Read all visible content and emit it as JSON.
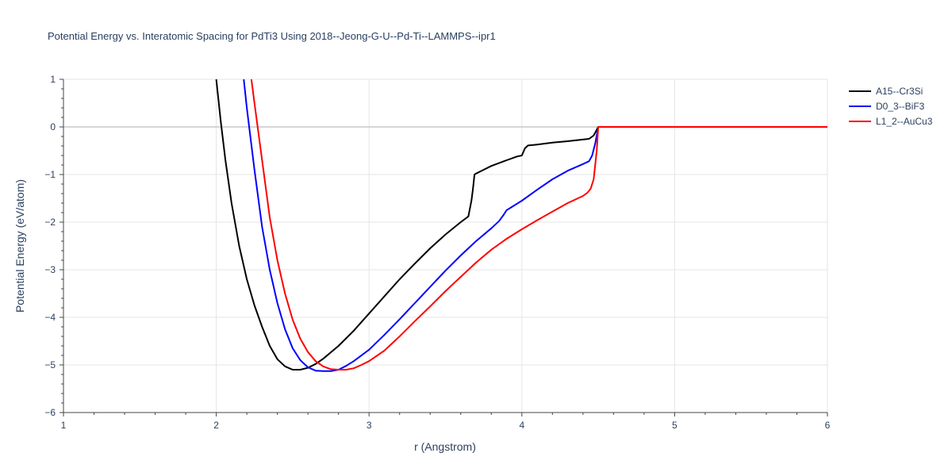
{
  "chart_data": {
    "type": "line",
    "title": "Potential Energy vs. Interatomic Spacing for PdTi3 Using 2018--Jeong-G-U--Pd-Ti--LAMMPS--ipr1",
    "xlabel": "r (Angstrom)",
    "ylabel": "Potential Energy (eV/atom)",
    "xlim": [
      1,
      6
    ],
    "ylim": [
      -6,
      1
    ],
    "xticks": [
      "1",
      "2",
      "3",
      "4",
      "5",
      "6"
    ],
    "yticks": [
      "1",
      "0",
      "−1",
      "−2",
      "−3",
      "−4",
      "−5",
      "−6"
    ],
    "grid": true,
    "legend_position": "top-right",
    "series": [
      {
        "name": "A15--Cr3Si",
        "color": "#000000",
        "x": [
          2.0,
          2.03,
          2.06,
          2.1,
          2.15,
          2.2,
          2.25,
          2.3,
          2.35,
          2.4,
          2.45,
          2.5,
          2.55,
          2.6,
          2.65,
          2.7,
          2.8,
          2.9,
          3.0,
          3.1,
          3.2,
          3.3,
          3.4,
          3.5,
          3.6,
          3.65,
          3.67,
          3.68,
          3.69,
          3.7,
          3.75,
          3.8,
          3.9,
          3.97,
          4.0,
          4.02,
          4.04,
          4.1,
          4.2,
          4.3,
          4.44,
          4.47,
          4.5,
          4.55,
          5.0,
          5.5,
          6.0
        ],
        "y": [
          1.0,
          0.1,
          -0.7,
          -1.6,
          -2.5,
          -3.2,
          -3.75,
          -4.2,
          -4.6,
          -4.88,
          -5.03,
          -5.1,
          -5.1,
          -5.06,
          -4.98,
          -4.87,
          -4.6,
          -4.28,
          -3.92,
          -3.56,
          -3.2,
          -2.87,
          -2.55,
          -2.26,
          -2.0,
          -1.88,
          -1.55,
          -1.3,
          -1.0,
          -0.98,
          -0.9,
          -0.82,
          -0.7,
          -0.62,
          -0.6,
          -0.45,
          -0.39,
          -0.37,
          -0.33,
          -0.3,
          -0.25,
          -0.18,
          0.0,
          0.0,
          0.0,
          0.0,
          0.0
        ]
      },
      {
        "name": "D0_3--BiF3",
        "color": "#0000ff",
        "x": [
          2.18,
          2.2,
          2.25,
          2.3,
          2.35,
          2.4,
          2.45,
          2.5,
          2.55,
          2.6,
          2.65,
          2.7,
          2.75,
          2.8,
          2.85,
          2.9,
          3.0,
          3.1,
          3.2,
          3.3,
          3.4,
          3.5,
          3.6,
          3.7,
          3.8,
          3.85,
          3.88,
          3.9,
          4.0,
          4.1,
          4.2,
          4.3,
          4.4,
          4.44,
          4.46,
          4.48,
          4.5,
          4.55,
          5.0,
          5.5,
          6.0
        ],
        "y": [
          1.0,
          0.4,
          -0.9,
          -2.1,
          -3.0,
          -3.7,
          -4.25,
          -4.65,
          -4.9,
          -5.05,
          -5.12,
          -5.13,
          -5.13,
          -5.1,
          -5.02,
          -4.92,
          -4.68,
          -4.37,
          -4.04,
          -3.7,
          -3.36,
          -3.02,
          -2.7,
          -2.4,
          -2.13,
          -1.98,
          -1.85,
          -1.75,
          -1.55,
          -1.32,
          -1.1,
          -0.92,
          -0.78,
          -0.72,
          -0.6,
          -0.35,
          0.0,
          0.0,
          0.0,
          0.0,
          0.0
        ]
      },
      {
        "name": "L1_2--AuCu3",
        "color": "#ff0000",
        "x": [
          2.23,
          2.25,
          2.3,
          2.35,
          2.4,
          2.45,
          2.5,
          2.55,
          2.6,
          2.65,
          2.7,
          2.75,
          2.8,
          2.85,
          2.9,
          2.95,
          3.0,
          3.1,
          3.2,
          3.3,
          3.4,
          3.5,
          3.6,
          3.7,
          3.8,
          3.9,
          4.0,
          4.1,
          4.2,
          4.3,
          4.4,
          4.43,
          4.45,
          4.47,
          4.49,
          4.5,
          4.55,
          5.0,
          5.5,
          6.0
        ],
        "y": [
          1.0,
          0.5,
          -0.7,
          -1.9,
          -2.8,
          -3.5,
          -4.05,
          -4.45,
          -4.73,
          -4.92,
          -5.03,
          -5.09,
          -5.1,
          -5.1,
          -5.07,
          -5.0,
          -4.92,
          -4.7,
          -4.4,
          -4.08,
          -3.77,
          -3.45,
          -3.15,
          -2.85,
          -2.58,
          -2.35,
          -2.15,
          -1.96,
          -1.78,
          -1.6,
          -1.45,
          -1.38,
          -1.3,
          -1.1,
          -0.5,
          0.0,
          0.0,
          0.0,
          0.0,
          0.0
        ]
      }
    ]
  }
}
